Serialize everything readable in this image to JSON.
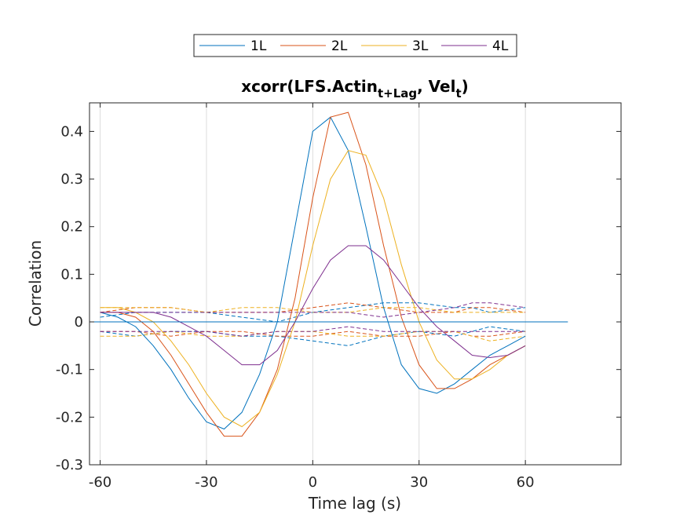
{
  "chart_data": {
    "type": "line",
    "title": {
      "base": "xcorr(LFS.Actin",
      "sub1": "t+Lag",
      "mid": ", Vel",
      "sub2": "t",
      "end": ")"
    },
    "xlabel": "Time lag (s)",
    "ylabel": "Correlation",
    "xlim": [
      -63,
      87
    ],
    "ylim": [
      -0.3,
      0.46
    ],
    "xticks": [
      -60,
      -30,
      0,
      30,
      60
    ],
    "xtick_labels": [
      "-60",
      "-30",
      "0",
      "30",
      "60"
    ],
    "yticks": [
      -0.3,
      -0.2,
      -0.1,
      0,
      0.1,
      0.2,
      0.3,
      0.4
    ],
    "ytick_labels": [
      "-0.3",
      "-0.2",
      "-0.1",
      "0",
      "0.1",
      "0.2",
      "0.3",
      "0.4"
    ],
    "grid": "x-only",
    "legend_position": "top-center, outside, horizontal",
    "zero_line": {
      "x": [
        -63,
        72
      ],
      "y": 0,
      "color": "#0072BD"
    },
    "series": [
      {
        "name": "1L",
        "color": "#0072BD",
        "x": [
          -60,
          -55,
          -50,
          -45,
          -40,
          -35,
          -30,
          -25,
          -20,
          -15,
          -10,
          -5,
          0,
          5,
          10,
          15,
          20,
          25,
          30,
          35,
          40,
          45,
          50,
          55,
          60
        ],
        "y": [
          0.02,
          0.01,
          -0.01,
          -0.05,
          -0.1,
          -0.16,
          -0.21,
          -0.225,
          -0.19,
          -0.11,
          0.0,
          0.2,
          0.4,
          0.43,
          0.36,
          0.2,
          0.03,
          -0.09,
          -0.14,
          -0.15,
          -0.13,
          -0.1,
          -0.07,
          -0.05,
          -0.03
        ]
      },
      {
        "name": "2L",
        "color": "#D95319",
        "x": [
          -60,
          -55,
          -50,
          -45,
          -40,
          -35,
          -30,
          -25,
          -20,
          -15,
          -10,
          -5,
          0,
          5,
          10,
          15,
          20,
          25,
          30,
          35,
          40,
          45,
          50,
          55,
          60
        ],
        "y": [
          0.02,
          0.02,
          0.01,
          -0.02,
          -0.07,
          -0.13,
          -0.19,
          -0.24,
          -0.24,
          -0.19,
          -0.1,
          0.05,
          0.26,
          0.43,
          0.44,
          0.33,
          0.16,
          0.01,
          -0.09,
          -0.14,
          -0.14,
          -0.12,
          -0.09,
          -0.07,
          -0.05
        ]
      },
      {
        "name": "3L",
        "color": "#EDB120",
        "x": [
          -60,
          -55,
          -50,
          -45,
          -40,
          -35,
          -30,
          -25,
          -20,
          -15,
          -10,
          -5,
          0,
          5,
          10,
          15,
          20,
          25,
          30,
          35,
          40,
          45,
          50,
          55,
          60
        ],
        "y": [
          0.03,
          0.03,
          0.02,
          0.0,
          -0.04,
          -0.09,
          -0.15,
          -0.2,
          -0.22,
          -0.19,
          -0.11,
          0.0,
          0.16,
          0.3,
          0.36,
          0.35,
          0.26,
          0.12,
          0.0,
          -0.08,
          -0.12,
          -0.12,
          -0.1,
          -0.07,
          -0.05
        ]
      },
      {
        "name": "4L",
        "color": "#7E2F8E",
        "x": [
          -60,
          -55,
          -50,
          -45,
          -40,
          -35,
          -30,
          -25,
          -20,
          -15,
          -10,
          -5,
          0,
          5,
          10,
          15,
          20,
          25,
          30,
          35,
          40,
          45,
          50,
          55,
          60
        ],
        "y": [
          0.02,
          0.02,
          0.02,
          0.02,
          0.01,
          -0.01,
          -0.03,
          -0.06,
          -0.09,
          -0.09,
          -0.06,
          0.0,
          0.07,
          0.13,
          0.16,
          0.16,
          0.13,
          0.08,
          0.03,
          -0.01,
          -0.04,
          -0.07,
          -0.075,
          -0.07,
          -0.05
        ]
      }
    ],
    "dashed_bounds": [
      {
        "color": "#0072BD",
        "upper": [
          0.01,
          0.02,
          0.02,
          0.02,
          0.01,
          0.0,
          0.02,
          0.03,
          0.04,
          0.04,
          0.03,
          0.03,
          0.02,
          0.03
        ],
        "lower": [
          -0.02,
          -0.03,
          -0.02,
          -0.02,
          -0.03,
          -0.03,
          -0.04,
          -0.05,
          -0.03,
          -0.02,
          -0.03,
          -0.02,
          -0.01,
          -0.02
        ]
      },
      {
        "color": "#D95319",
        "upper": [
          0.02,
          0.03,
          0.03,
          0.02,
          0.02,
          0.02,
          0.03,
          0.04,
          0.03,
          0.02,
          0.02,
          0.03,
          0.03,
          0.02
        ],
        "lower": [
          -0.02,
          -0.02,
          -0.03,
          -0.02,
          -0.02,
          -0.03,
          -0.03,
          -0.02,
          -0.03,
          -0.03,
          -0.02,
          -0.03,
          -0.03,
          -0.02
        ]
      },
      {
        "color": "#EDB120",
        "upper": [
          0.03,
          0.03,
          0.03,
          0.02,
          0.03,
          0.03,
          0.02,
          0.02,
          0.03,
          0.03,
          0.02,
          0.02,
          0.02,
          0.02
        ],
        "lower": [
          -0.03,
          -0.03,
          -0.02,
          -0.03,
          -0.03,
          -0.02,
          -0.02,
          -0.03,
          -0.03,
          -0.02,
          -0.02,
          -0.03,
          -0.04,
          -0.03
        ]
      },
      {
        "color": "#7E2F8E",
        "upper": [
          0.02,
          0.02,
          0.02,
          0.02,
          0.02,
          0.02,
          0.02,
          0.02,
          0.01,
          0.02,
          0.03,
          0.04,
          0.04,
          0.03
        ],
        "lower": [
          -0.02,
          -0.02,
          -0.02,
          -0.02,
          -0.03,
          -0.02,
          -0.02,
          -0.01,
          -0.02,
          -0.02,
          -0.02,
          -0.02,
          -0.02,
          -0.02
        ]
      }
    ],
    "dashed_x": [
      -60,
      -50,
      -40,
      -30,
      -20,
      -10,
      0,
      10,
      20,
      30,
      40,
      45,
      50,
      60
    ]
  }
}
